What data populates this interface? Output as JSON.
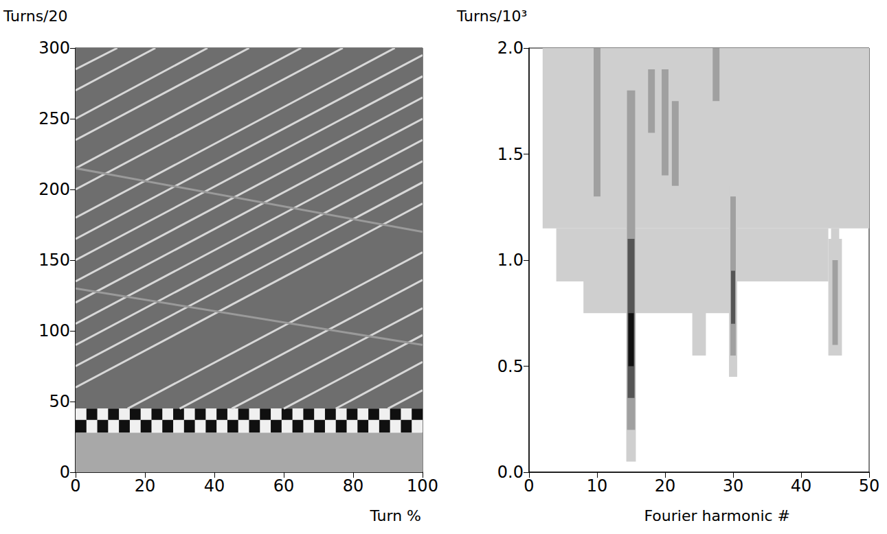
{
  "chart_data": [
    {
      "type": "heatmap",
      "x_label": "Turn %",
      "y_label": "Turns/20",
      "xlim": [
        0,
        100
      ],
      "xticks": [
        0,
        20,
        40,
        60,
        80,
        100
      ],
      "ylim": [
        0,
        300
      ],
      "yticks": [
        0,
        50,
        100,
        150,
        200,
        250,
        300
      ],
      "grid": false,
      "regions": [
        {
          "color": "#6e6e6e",
          "cells": [
            [
              0,
              100,
              45,
              300
            ]
          ]
        },
        {
          "color": "#a8a8a8",
          "cells": [
            [
              0,
              100,
              0,
              28
            ]
          ]
        },
        {
          "color": "#f0f0f0",
          "cells": [
            [
              0,
              100,
              28,
              45
            ]
          ]
        },
        {
          "color": "#101010",
          "cells": [
            [
              0,
              3.125,
              28,
              37
            ],
            [
              6.25,
              9.375,
              28,
              37
            ],
            [
              12.5,
              15.625,
              28,
              37
            ],
            [
              18.75,
              21.875,
              28,
              37
            ],
            [
              25,
              28.125,
              28,
              37
            ],
            [
              31.25,
              34.375,
              28,
              37
            ],
            [
              37.5,
              40.625,
              28,
              37
            ],
            [
              43.75,
              46.875,
              28,
              37
            ],
            [
              50,
              53.125,
              28,
              37
            ],
            [
              56.25,
              59.375,
              28,
              37
            ],
            [
              62.5,
              65.625,
              28,
              37
            ],
            [
              68.75,
              71.875,
              28,
              37
            ],
            [
              75,
              78.125,
              28,
              37
            ],
            [
              81.25,
              84.375,
              28,
              37
            ],
            [
              87.5,
              90.625,
              28,
              37
            ],
            [
              93.75,
              96.875,
              28,
              37
            ],
            [
              3.125,
              6.25,
              37,
              45
            ],
            [
              9.375,
              12.5,
              37,
              45
            ],
            [
              15.625,
              18.75,
              37,
              45
            ],
            [
              21.875,
              25,
              37,
              45
            ],
            [
              28.125,
              31.25,
              37,
              45
            ],
            [
              34.375,
              37.5,
              37,
              45
            ],
            [
              40.625,
              43.75,
              37,
              45
            ],
            [
              46.875,
              50,
              37,
              45
            ],
            [
              53.125,
              56.25,
              37,
              45
            ],
            [
              59.375,
              62.5,
              37,
              45
            ],
            [
              65.625,
              68.75,
              37,
              45
            ],
            [
              71.875,
              75,
              37,
              45
            ],
            [
              78.125,
              81.25,
              37,
              45
            ],
            [
              84.375,
              87.5,
              37,
              45
            ],
            [
              90.625,
              93.75,
              37,
              45
            ],
            [
              96.875,
              100,
              37,
              45
            ]
          ]
        }
      ],
      "streaks": [
        {
          "color": "#d8d8d8",
          "segments": [
            [
              0,
              60,
              100,
              190
            ],
            [
              0,
              75,
              100,
              205
            ],
            [
              0,
              90,
              100,
              220
            ],
            [
              0,
              105,
              100,
              235
            ],
            [
              0,
              120,
              100,
              250
            ],
            [
              0,
              135,
              100,
              265
            ],
            [
              0,
              150,
              100,
              280
            ],
            [
              0,
              165,
              100,
              295
            ],
            [
              0,
              180,
              92,
              300
            ],
            [
              0,
              200,
              77,
              300
            ],
            [
              0,
              215,
              65,
              300
            ],
            [
              0,
              235,
              50,
              300
            ],
            [
              0,
              250,
              38,
              300
            ],
            [
              0,
              270,
              23,
              300
            ],
            [
              0,
              285,
              12,
              300
            ],
            [
              15,
              45,
              100,
              155.5
            ],
            [
              30,
              45,
              100,
              136
            ],
            [
              45,
              45,
              100,
              116
            ],
            [
              60,
              45,
              100,
              97
            ],
            [
              75,
              45,
              100,
              78
            ],
            [
              90,
              45,
              100,
              58
            ]
          ]
        },
        {
          "color": "#9a9a9a",
          "segments": [
            [
              0,
              130,
              100,
              90
            ],
            [
              0,
              215,
              100,
              170
            ]
          ]
        }
      ]
    },
    {
      "type": "heatmap",
      "x_label": "Fourier harmonic #",
      "y_label": "Turns/10³",
      "xlim": [
        0,
        50
      ],
      "xticks": [
        0,
        10,
        20,
        30,
        40,
        50
      ],
      "ylim": [
        0,
        2
      ],
      "yticks": [
        {
          "value": 0,
          "label": "0.0"
        },
        0.5,
        {
          "value": 1,
          "label": "1.0"
        },
        1.5,
        {
          "value": 2,
          "label": "2.0"
        }
      ],
      "grid": false,
      "regions": [
        {
          "color": "#cfcfcf",
          "cells": [
            [
              2,
              50,
              1.15,
              2.0
            ],
            [
              4,
              44,
              0.9,
              1.15
            ],
            [
              8,
              30,
              0.75,
              0.9
            ],
            [
              24,
              26,
              0.55,
              0.9
            ],
            [
              44,
              46,
              0.55,
              1.1
            ],
            [
              14.3,
              15.7,
              0.05,
              2.0
            ],
            [
              29.4,
              30.6,
              0.45,
              1.35
            ],
            [
              44.4,
              45.6,
              0.55,
              1.15
            ]
          ]
        },
        {
          "color": "#a0a0a0",
          "cells": [
            [
              14.4,
              15.6,
              0.2,
              1.8
            ],
            [
              29.6,
              30.4,
              0.55,
              1.3
            ],
            [
              44.6,
              45.4,
              0.6,
              1.0
            ],
            [
              9.5,
              10.5,
              1.3,
              2.0
            ],
            [
              19.5,
              20.5,
              1.4,
              1.9
            ],
            [
              21,
              22,
              1.35,
              1.75
            ],
            [
              27,
              28,
              1.75,
              2.0
            ],
            [
              17.5,
              18.5,
              1.6,
              1.9
            ]
          ]
        },
        {
          "color": "#555555",
          "cells": [
            [
              14.5,
              15.5,
              0.35,
              1.1
            ],
            [
              29.7,
              30.3,
              0.7,
              0.95
            ]
          ]
        },
        {
          "color": "#111111",
          "cells": [
            [
              14.6,
              15.4,
              0.5,
              0.75
            ]
          ]
        }
      ]
    }
  ]
}
